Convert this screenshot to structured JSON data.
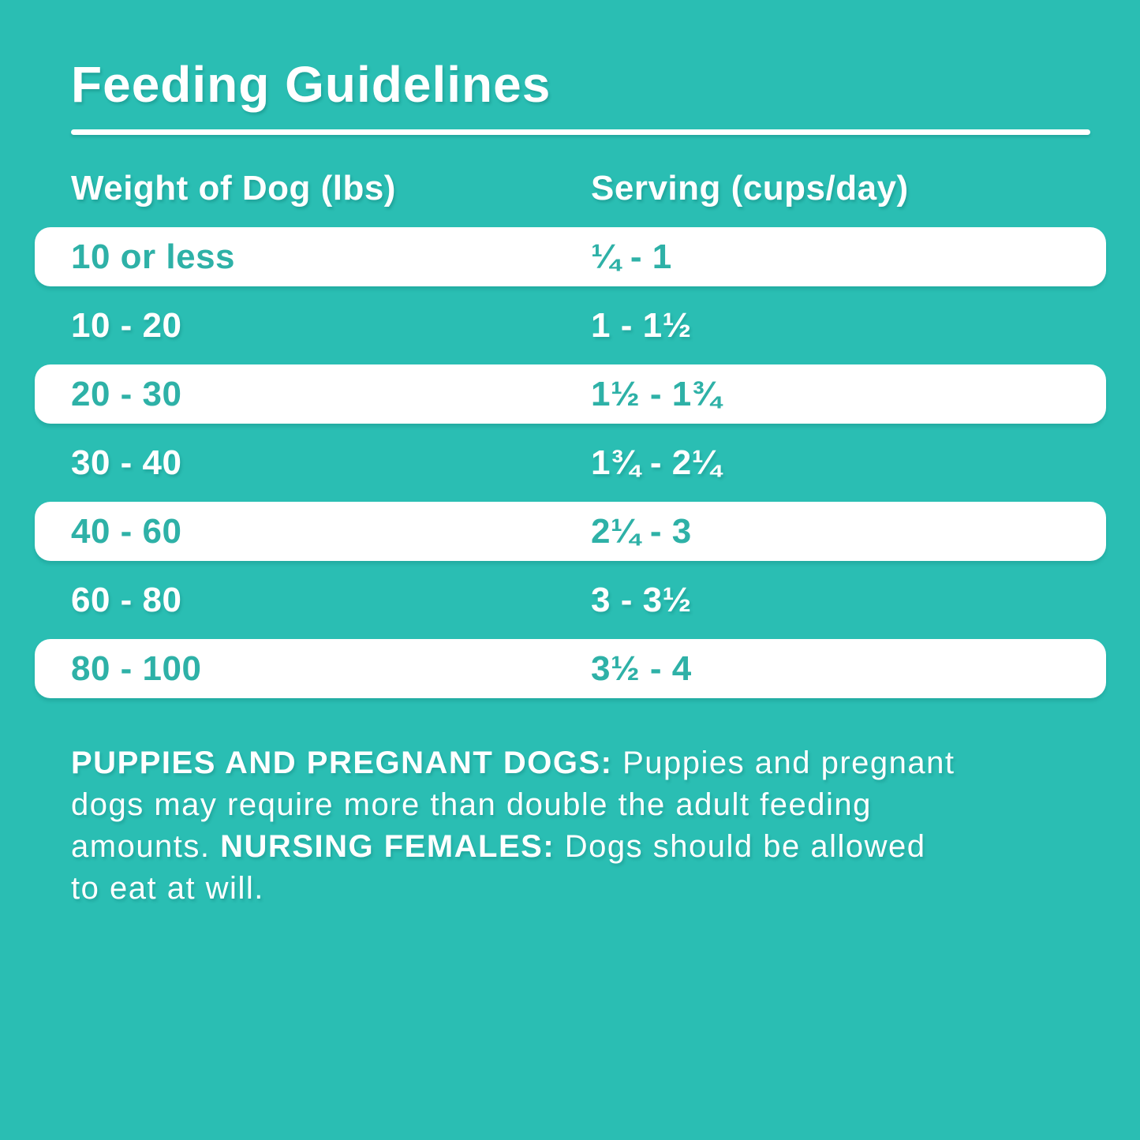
{
  "theme": {
    "background": "#2ABEB3",
    "row_text_teal": "#2EB1A7",
    "text_white": "#FFFFFF"
  },
  "header": {
    "title": "Feeding Guidelines"
  },
  "table": {
    "columns": [
      {
        "label": "Weight of Dog (lbs)"
      },
      {
        "label": "Serving (cups/day)"
      }
    ],
    "rows": [
      {
        "weight": "10 or less",
        "serving": "¼ - 1",
        "style": "white"
      },
      {
        "weight": "10 - 20",
        "serving": "1 - 1½",
        "style": "teal"
      },
      {
        "weight": "20 - 30",
        "serving": "1½ - 1¾",
        "style": "white"
      },
      {
        "weight": "30 - 40",
        "serving": "1¾ - 2¼",
        "style": "teal"
      },
      {
        "weight": "40 - 60",
        "serving": "2¼ - 3",
        "style": "white"
      },
      {
        "weight": "60 - 80",
        "serving": "3 - 3½",
        "style": "teal"
      },
      {
        "weight": "80 - 100",
        "serving": "3½ - 4",
        "style": "white"
      }
    ]
  },
  "footnote": {
    "lines": [
      {
        "segments": [
          {
            "text": "PUPPIES AND PREGNANT DOGS:",
            "bold": true
          },
          {
            "text": " Puppies and pregnant",
            "bold": false
          }
        ]
      },
      {
        "segments": [
          {
            "text": "dogs may require more than double the adult feeding",
            "bold": false
          }
        ]
      },
      {
        "segments": [
          {
            "text": "amounts. ",
            "bold": false
          },
          {
            "text": "NURSING FEMALES:",
            "bold": true
          },
          {
            "text": " Dogs should be allowed",
            "bold": false
          }
        ]
      },
      {
        "segments": [
          {
            "text": "to eat at will.",
            "bold": false
          }
        ]
      }
    ]
  },
  "chart_data": {
    "type": "table",
    "title": "Feeding Guidelines",
    "columns": [
      "Weight of Dog (lbs)",
      "Serving (cups/day)"
    ],
    "rows": [
      [
        "10 or less",
        "¼ - 1"
      ],
      [
        "10 - 20",
        "1 - 1½"
      ],
      [
        "20 - 30",
        "1½ - 1¾"
      ],
      [
        "30 - 40",
        "1¾ - 2¼"
      ],
      [
        "40 - 60",
        "2¼ - 3"
      ],
      [
        "60 - 80",
        "3 - 3½"
      ],
      [
        "80 - 100",
        "3½ - 4"
      ]
    ],
    "note": "PUPPIES AND PREGNANT DOGS: Puppies and pregnant dogs may require more than double the adult feeding amounts. NURSING FEMALES: Dogs should be allowed to eat at will."
  }
}
